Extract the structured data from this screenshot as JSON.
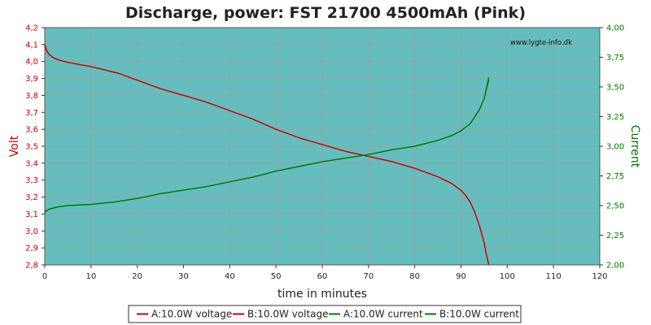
{
  "chart_data": {
    "type": "line",
    "title": "Discharge, power: FST 21700 4500mAh (Pink)",
    "xlabel": "time in minutes",
    "ylabel_left": "Volt",
    "ylabel_right": "Current",
    "watermark": "www.lygte-info.dk",
    "xlim": [
      0,
      120
    ],
    "ylim_left": [
      2.8,
      4.2
    ],
    "ylim_right": [
      2.0,
      4.0
    ],
    "x_ticks": [
      "0",
      "10",
      "20",
      "30",
      "40",
      "50",
      "60",
      "70",
      "80",
      "90",
      "100",
      "110",
      "120"
    ],
    "y_ticks_left": [
      "2,8",
      "2,9",
      "3,0",
      "3,1",
      "3,2",
      "3,3",
      "3,4",
      "3,5",
      "3,6",
      "3,7",
      "3,8",
      "3,9",
      "4,0",
      "4,1",
      "4,2"
    ],
    "y_ticks_right": [
      "2,00",
      "2,25",
      "2,50",
      "2,75",
      "3,00",
      "3,25",
      "3,50",
      "3,75",
      "4,00"
    ],
    "grid": true,
    "legend_position": "bottom",
    "colors": {
      "plot_bg": "#66bdbd",
      "grid": "#8fa7a7",
      "voltage": "#cc0000",
      "current": "#007700"
    },
    "series": [
      {
        "name": "A:10.0W voltage",
        "axis": "left",
        "color": "#cc0000",
        "x": [
          0,
          0.5,
          1,
          2,
          3,
          5,
          7,
          10,
          13,
          16,
          20,
          25,
          30,
          35,
          40,
          45,
          50,
          55,
          60,
          65,
          70,
          75,
          80,
          85,
          88,
          90,
          91,
          92,
          93,
          94,
          95,
          95.5,
          96
        ],
        "y": [
          4.1,
          4.06,
          4.04,
          4.02,
          4.01,
          3.995,
          3.985,
          3.97,
          3.95,
          3.93,
          3.89,
          3.84,
          3.8,
          3.76,
          3.71,
          3.66,
          3.6,
          3.55,
          3.51,
          3.47,
          3.44,
          3.41,
          3.37,
          3.32,
          3.28,
          3.24,
          3.21,
          3.17,
          3.11,
          3.03,
          2.93,
          2.86,
          2.8
        ]
      },
      {
        "name": "B:10.0W voltage",
        "axis": "left",
        "color": "#cc0000",
        "x": [
          0,
          0.5,
          1,
          2,
          3,
          5,
          7,
          10,
          13,
          16,
          20,
          25,
          30,
          35,
          40,
          45,
          50,
          55,
          60,
          65,
          70,
          75,
          80,
          85,
          88,
          90,
          91,
          92,
          93,
          94,
          95,
          95.5,
          96
        ],
        "y": [
          4.09,
          4.06,
          4.04,
          4.02,
          4.01,
          3.995,
          3.985,
          3.97,
          3.95,
          3.93,
          3.89,
          3.84,
          3.8,
          3.76,
          3.71,
          3.66,
          3.6,
          3.55,
          3.51,
          3.47,
          3.44,
          3.41,
          3.37,
          3.32,
          3.28,
          3.24,
          3.21,
          3.17,
          3.11,
          3.03,
          2.93,
          2.86,
          2.8
        ]
      },
      {
        "name": "A:10.0W current",
        "axis": "right",
        "color": "#007700",
        "x": [
          0,
          0.5,
          1,
          2,
          3,
          5,
          10,
          15,
          20,
          25,
          30,
          35,
          40,
          45,
          50,
          55,
          60,
          65,
          70,
          75,
          80,
          85,
          88,
          90,
          92,
          93,
          94,
          95,
          95.5,
          96
        ],
        "y": [
          2.45,
          2.46,
          2.47,
          2.48,
          2.49,
          2.5,
          2.51,
          2.53,
          2.56,
          2.6,
          2.63,
          2.66,
          2.7,
          2.74,
          2.79,
          2.83,
          2.87,
          2.9,
          2.93,
          2.97,
          3.0,
          3.05,
          3.09,
          3.13,
          3.19,
          3.25,
          3.31,
          3.4,
          3.48,
          3.56
        ]
      },
      {
        "name": "B:10.0W current",
        "axis": "right",
        "color": "#007700",
        "x": [
          0,
          0.5,
          1,
          2,
          3,
          5,
          10,
          15,
          20,
          25,
          30,
          35,
          40,
          45,
          50,
          55,
          60,
          65,
          70,
          75,
          80,
          85,
          88,
          90,
          92,
          93,
          94,
          95,
          95.5,
          96
        ],
        "y": [
          2.44,
          2.46,
          2.47,
          2.48,
          2.49,
          2.5,
          2.51,
          2.53,
          2.56,
          2.6,
          2.63,
          2.66,
          2.7,
          2.74,
          2.79,
          2.83,
          2.87,
          2.9,
          2.93,
          2.97,
          3.0,
          3.05,
          3.09,
          3.13,
          3.19,
          3.25,
          3.31,
          3.4,
          3.49,
          3.58
        ]
      }
    ]
  }
}
